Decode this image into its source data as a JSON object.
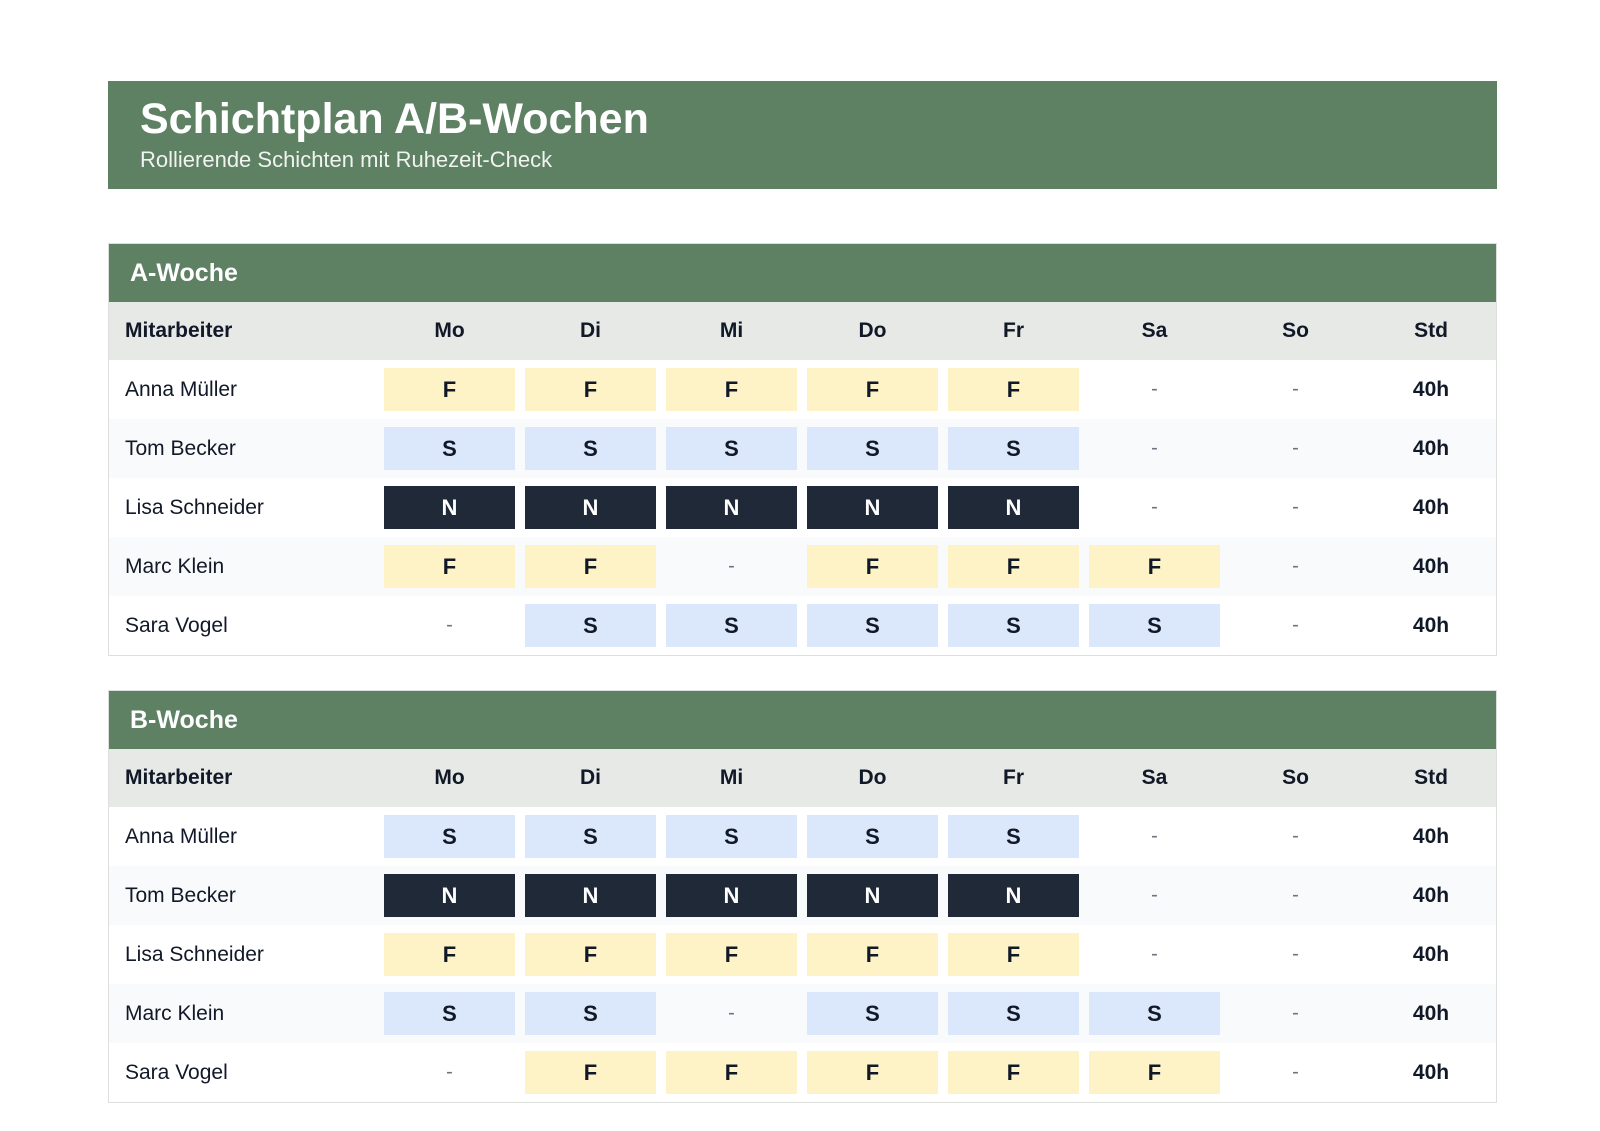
{
  "header": {
    "title": "Schichtplan A/B-Wochen",
    "subtitle": "Rollierende Schichten mit Ruhezeit-Check"
  },
  "columns": {
    "employee": "Mitarbeiter",
    "days": [
      "Mo",
      "Di",
      "Mi",
      "Do",
      "Fr",
      "Sa",
      "So"
    ],
    "hours": "Std"
  },
  "shift_colors": {
    "F": "#fef3c7",
    "S": "#dbe8fb",
    "N": "#1f2937",
    "accent": "#5e8063"
  },
  "weeks": [
    {
      "title": "A-Woche",
      "rows": [
        {
          "name": "Anna Müller",
          "shifts": [
            "F",
            "F",
            "F",
            "F",
            "F",
            "-",
            "-"
          ],
          "hours": "40h"
        },
        {
          "name": "Tom Becker",
          "shifts": [
            "S",
            "S",
            "S",
            "S",
            "S",
            "-",
            "-"
          ],
          "hours": "40h"
        },
        {
          "name": "Lisa Schneider",
          "shifts": [
            "N",
            "N",
            "N",
            "N",
            "N",
            "-",
            "-"
          ],
          "hours": "40h"
        },
        {
          "name": "Marc Klein",
          "shifts": [
            "F",
            "F",
            "-",
            "F",
            "F",
            "F",
            "-"
          ],
          "hours": "40h"
        },
        {
          "name": "Sara Vogel",
          "shifts": [
            "-",
            "S",
            "S",
            "S",
            "S",
            "S",
            "-"
          ],
          "hours": "40h"
        }
      ]
    },
    {
      "title": "B-Woche",
      "rows": [
        {
          "name": "Anna Müller",
          "shifts": [
            "S",
            "S",
            "S",
            "S",
            "S",
            "-",
            "-"
          ],
          "hours": "40h"
        },
        {
          "name": "Tom Becker",
          "shifts": [
            "N",
            "N",
            "N",
            "N",
            "N",
            "-",
            "-"
          ],
          "hours": "40h"
        },
        {
          "name": "Lisa Schneider",
          "shifts": [
            "F",
            "F",
            "F",
            "F",
            "F",
            "-",
            "-"
          ],
          "hours": "40h"
        },
        {
          "name": "Marc Klein",
          "shifts": [
            "S",
            "S",
            "-",
            "S",
            "S",
            "S",
            "-"
          ],
          "hours": "40h"
        },
        {
          "name": "Sara Vogel",
          "shifts": [
            "-",
            "F",
            "F",
            "F",
            "F",
            "F",
            "-"
          ],
          "hours": "40h"
        }
      ]
    }
  ]
}
